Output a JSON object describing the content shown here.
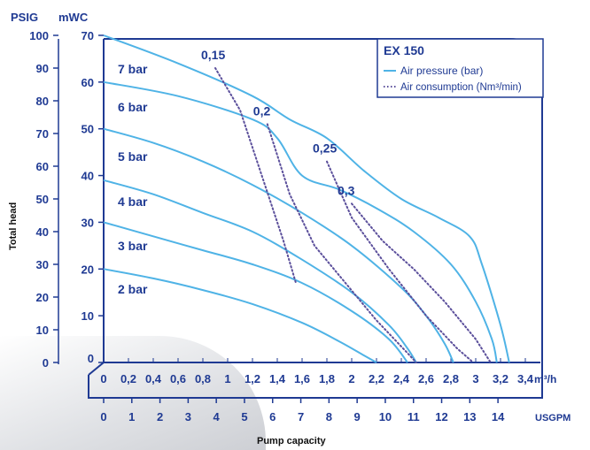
{
  "chart_data": {
    "type": "line",
    "title": "EX 150",
    "left_axis": {
      "unit": "PSIG",
      "ticks": [
        "0",
        "10",
        "20",
        "30",
        "40",
        "50",
        "60",
        "70",
        "80",
        "90",
        "100"
      ],
      "range": [
        0,
        100
      ]
    },
    "mid_axis": {
      "unit": "mWC",
      "ticks": [
        "0",
        "10",
        "20",
        "30",
        "40",
        "50",
        "60",
        "70"
      ],
      "range": [
        0,
        70
      ]
    },
    "x_axis_m3h": {
      "unit": "m³/h",
      "ticks": [
        "0",
        "0,2",
        "0,4",
        "0,6",
        "0,8",
        "1",
        "1,2",
        "1,4",
        "1,6",
        "1,8",
        "2",
        "2,2",
        "2,4",
        "2,6",
        "2,8",
        "3",
        "3,2",
        "3,4"
      ],
      "range": [
        0,
        3.4
      ]
    },
    "x_axis_usgpm": {
      "unit": "USGPM",
      "ticks": [
        "0",
        "1",
        "2",
        "3",
        "4",
        "5",
        "6",
        "7",
        "8",
        "9",
        "10",
        "11",
        "12",
        "13",
        "14"
      ]
    },
    "xlabel": "Pump capacity",
    "ylabel": "Total head",
    "legend": {
      "placement": "top-right",
      "title": "EX 150",
      "entries": [
        {
          "style": "solid",
          "label": "Air pressure (bar)"
        },
        {
          "style": "dotted",
          "label": "Air consumption (Nm³/min)"
        }
      ]
    },
    "air_pressure_series": [
      {
        "name": "7 bar",
        "points": [
          [
            0,
            70
          ],
          [
            0.6,
            64
          ],
          [
            1.2,
            57
          ],
          [
            1.5,
            52
          ],
          [
            1.8,
            48
          ],
          [
            2.1,
            41
          ],
          [
            2.4,
            35
          ],
          [
            2.7,
            31
          ],
          [
            2.95,
            27
          ],
          [
            3.05,
            21
          ],
          [
            3.2,
            8
          ],
          [
            3.27,
            0
          ]
        ]
      },
      {
        "name": "6 bar",
        "points": [
          [
            0,
            60
          ],
          [
            0.6,
            57
          ],
          [
            1.2,
            52
          ],
          [
            1.4,
            48
          ],
          [
            1.6,
            40
          ],
          [
            1.9,
            37
          ],
          [
            2.2,
            33
          ],
          [
            2.5,
            28
          ],
          [
            2.8,
            21
          ],
          [
            3.0,
            13
          ],
          [
            3.13,
            5
          ],
          [
            3.17,
            0
          ]
        ]
      },
      {
        "name": "5 bar",
        "points": [
          [
            0,
            50
          ],
          [
            0.4,
            47
          ],
          [
            0.8,
            43
          ],
          [
            1.2,
            38
          ],
          [
            1.6,
            32
          ],
          [
            2.0,
            25
          ],
          [
            2.4,
            16
          ],
          [
            2.6,
            10
          ],
          [
            2.75,
            4
          ],
          [
            2.82,
            0
          ]
        ]
      },
      {
        "name": "4 bar",
        "points": [
          [
            0,
            39
          ],
          [
            0.4,
            36
          ],
          [
            0.8,
            32
          ],
          [
            1.2,
            28
          ],
          [
            1.6,
            22
          ],
          [
            2.0,
            15
          ],
          [
            2.3,
            8
          ],
          [
            2.45,
            3
          ],
          [
            2.52,
            0
          ]
        ]
      },
      {
        "name": "3 bar",
        "points": [
          [
            0,
            30
          ],
          [
            0.4,
            27
          ],
          [
            0.8,
            24
          ],
          [
            1.2,
            21
          ],
          [
            1.6,
            17
          ],
          [
            2.0,
            11
          ],
          [
            2.3,
            5
          ],
          [
            2.45,
            0
          ]
        ]
      },
      {
        "name": "2 bar",
        "points": [
          [
            0,
            20
          ],
          [
            0.4,
            18
          ],
          [
            0.8,
            15.5
          ],
          [
            1.2,
            12.5
          ],
          [
            1.6,
            8.5
          ],
          [
            1.9,
            4.5
          ],
          [
            2.1,
            1.5
          ],
          [
            2.2,
            0
          ]
        ]
      }
    ],
    "air_consumption_series": [
      {
        "name": "0,15",
        "points": [
          [
            0.9,
            63
          ],
          [
            1.1,
            54
          ],
          [
            1.3,
            38
          ],
          [
            1.45,
            26
          ],
          [
            1.55,
            17
          ]
        ]
      },
      {
        "name": "0,2",
        "points": [
          [
            1.32,
            51
          ],
          [
            1.5,
            36
          ],
          [
            1.7,
            25
          ],
          [
            1.95,
            17
          ],
          [
            2.2,
            9
          ],
          [
            2.45,
            2
          ],
          [
            2.52,
            0
          ]
        ]
      },
      {
        "name": "0,25",
        "points": [
          [
            1.8,
            43
          ],
          [
            2.0,
            31
          ],
          [
            2.3,
            20
          ],
          [
            2.6,
            10
          ],
          [
            2.85,
            3
          ],
          [
            2.98,
            0
          ]
        ]
      },
      {
        "name": "0,3",
        "points": [
          [
            2.0,
            34
          ],
          [
            2.25,
            26
          ],
          [
            2.5,
            20
          ],
          [
            2.75,
            13
          ],
          [
            3.0,
            5
          ],
          [
            3.12,
            0
          ]
        ]
      }
    ]
  }
}
